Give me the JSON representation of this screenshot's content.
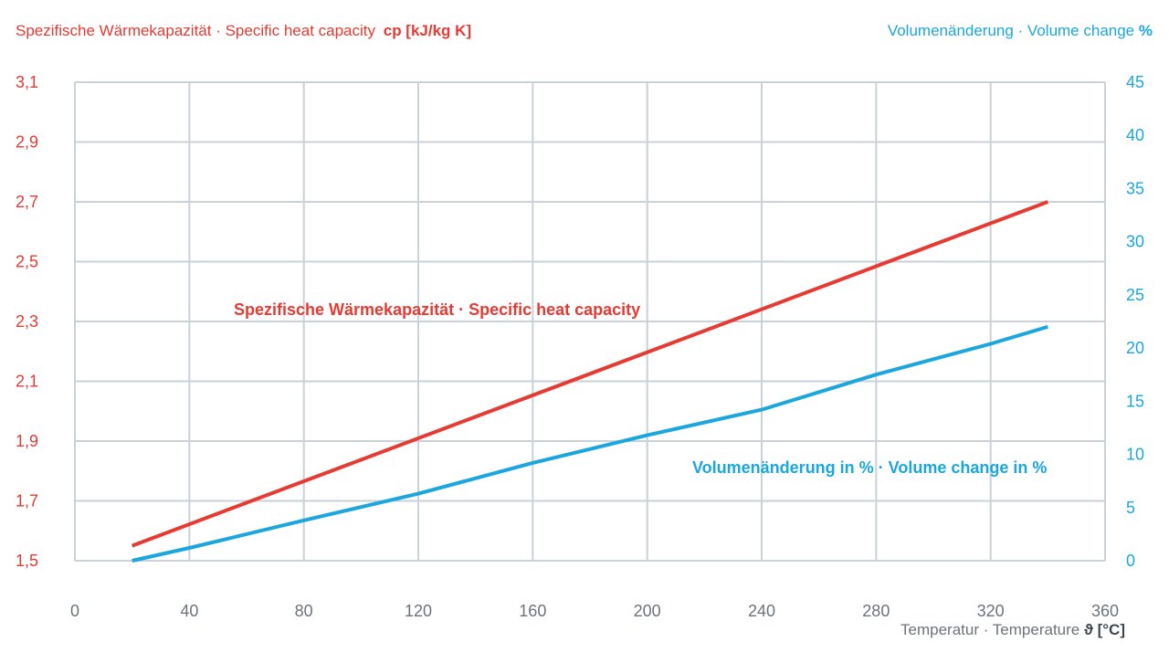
{
  "header": {
    "left_title_text": "Spezifische Wärmekapazität · Specific heat capacity",
    "left_title_symbol": "cp [kJ/kg K]",
    "right_title_text": "Volumenänderung · Volume change",
    "right_title_symbol": "%"
  },
  "footer": {
    "x_title_text": "Temperatur · Temperature",
    "x_title_symbol": "ϑ [°C]"
  },
  "colors": {
    "heat_capacity": "#e63b33",
    "volume_change": "#1ba7dd",
    "grid": "#c9d1d9",
    "x_tick": "#6c737b"
  },
  "chart_data": {
    "type": "line",
    "x": {
      "label": "Temperatur · Temperature ϑ [°C]",
      "lim": [
        0,
        360
      ],
      "ticks": [
        0,
        40,
        80,
        120,
        160,
        200,
        240,
        280,
        320,
        360
      ],
      "tick_labels": [
        "0",
        "40",
        "80",
        "120",
        "160",
        "200",
        "240",
        "280",
        "320",
        "360"
      ]
    },
    "y_left": {
      "label": "Spezifische Wärmekapazität · Specific heat capacity cp [kJ/kg K]",
      "lim": [
        1.5,
        3.1
      ],
      "ticks": [
        1.5,
        1.7,
        1.9,
        2.1,
        2.3,
        2.5,
        2.7,
        2.9,
        3.1
      ],
      "tick_labels": [
        "1,5",
        "1,7",
        "1,9",
        "2,1",
        "2,3",
        "2,5",
        "2,7",
        "2,9",
        "3,1"
      ]
    },
    "y_right": {
      "label": "Volumenänderung · Volume change %",
      "lim": [
        0,
        45
      ],
      "ticks": [
        0,
        5,
        10,
        15,
        20,
        25,
        30,
        35,
        40,
        45
      ],
      "tick_labels": [
        "0",
        "5",
        "10",
        "15",
        "20",
        "25",
        "30",
        "35",
        "40",
        "45"
      ]
    },
    "grid": true,
    "series": [
      {
        "name": "Spezifische Wärmekapazität · Specific heat capacity",
        "axis": "left",
        "points": [
          [
            20,
            1.55
          ],
          [
            340,
            2.7
          ]
        ]
      },
      {
        "name": "Volumenänderung in % · Volume change in %",
        "axis": "right",
        "points": [
          [
            20,
            0
          ],
          [
            40,
            1.2
          ],
          [
            80,
            3.8
          ],
          [
            120,
            6.3
          ],
          [
            160,
            9.2
          ],
          [
            200,
            11.8
          ],
          [
            240,
            14.2
          ],
          [
            280,
            17.5
          ],
          [
            320,
            20.4
          ],
          [
            340,
            22
          ]
        ]
      }
    ]
  }
}
